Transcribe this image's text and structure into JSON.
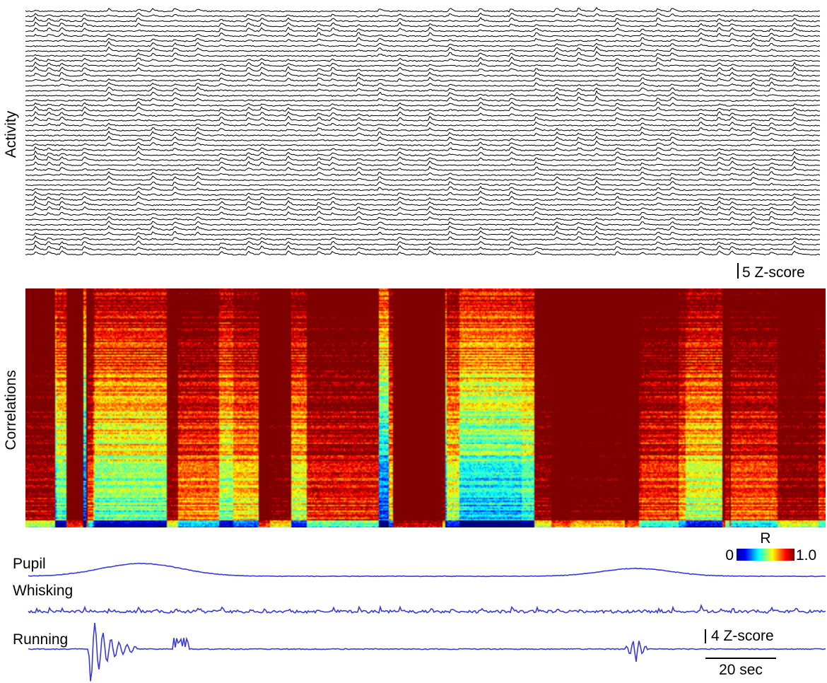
{
  "chart_data": [
    {
      "type": "line",
      "panel": "activity",
      "ylabel": "Activity",
      "n_traces": 50,
      "trace_color": "#000000",
      "scalebar_label": "5 Z-score",
      "scalebar_value": 5,
      "scalebar_unit": "Z-score"
    },
    {
      "type": "heatmap",
      "panel": "correlations",
      "ylabel": "Correlations",
      "colormap": "jet",
      "colorbar_title": "R",
      "colorbar_min_label": "0",
      "colorbar_max_label": "1.0",
      "range": [
        0,
        1.0
      ],
      "colors": [
        "#00008f",
        "#0000ff",
        "#00ffff",
        "#ffff00",
        "#ff0000",
        "#800000"
      ]
    },
    {
      "type": "line",
      "panel": "behavior",
      "trace_color": "#3a3ad8",
      "series": [
        {
          "name": "Pupil"
        },
        {
          "name": "Whisking"
        },
        {
          "name": "Running"
        }
      ],
      "scalebar_y_label": "4 Z-score",
      "scalebar_y_value": 4,
      "scalebar_y_unit": "Z-score",
      "scalebar_x_label": "20 sec",
      "scalebar_x_value": 20,
      "scalebar_x_unit": "sec"
    }
  ]
}
